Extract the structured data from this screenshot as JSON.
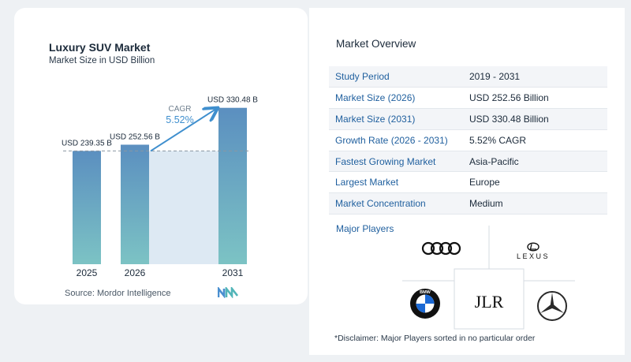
{
  "chart": {
    "title": "Luxury SUV Market",
    "subtitle": "Market Size in USD Billion",
    "source": "Source:  Mordor Intelligence",
    "cagr_label": "CAGR",
    "cagr_value": "5.52%"
  },
  "chart_data": {
    "type": "bar",
    "categories": [
      "2025",
      "2026",
      "2031"
    ],
    "values": [
      239.35,
      252.56,
      330.48
    ],
    "value_labels": [
      "USD 239.35 B",
      "USD 252.56 B",
      "USD 330.48 B"
    ],
    "title": "Luxury SUV Market",
    "subtitle": "Market Size in USD Billion",
    "xlabel": "",
    "ylabel": "",
    "ylim": [
      0,
      340
    ],
    "grid": false,
    "annotation": "CAGR 5.52%",
    "colors": {
      "bar_top": "#5b8fc0",
      "bar_bottom": "#7cc3c4",
      "band": "#dde9f3",
      "arrow": "#3f8fce",
      "ref_line": "#8a96a3"
    }
  },
  "overview": {
    "title": "Market Overview",
    "rows": [
      {
        "label": "Study Period",
        "value": "2019 - 2031"
      },
      {
        "label": "Market Size (2026)",
        "value": "USD 252.56 Billion"
      },
      {
        "label": "Market Size (2031)",
        "value": "USD 330.48 Billion"
      },
      {
        "label": "Growth Rate (2026 - 2031)",
        "value": "5.52% CAGR"
      },
      {
        "label": "Fastest Growing Market",
        "value": "Asia-Pacific"
      },
      {
        "label": "Largest Market",
        "value": "Europe"
      },
      {
        "label": "Market Concentration",
        "value": "Medium"
      }
    ],
    "players_title": "Major Players",
    "players": [
      {
        "name": "Audi",
        "icon": "audi-rings-icon"
      },
      {
        "name": "Lexus",
        "icon": "lexus-logo-icon",
        "wordmark": "LEXUS"
      },
      {
        "name": "BMW",
        "icon": "bmw-roundel-icon",
        "wordmark": "BMW"
      },
      {
        "name": "JLR",
        "icon": "jlr-logo-icon",
        "wordmark": "JLR"
      },
      {
        "name": "Mercedes-Benz",
        "icon": "mercedes-star-icon"
      }
    ],
    "disclaimer": "*Disclaimer: Major Players sorted in no particular order"
  }
}
